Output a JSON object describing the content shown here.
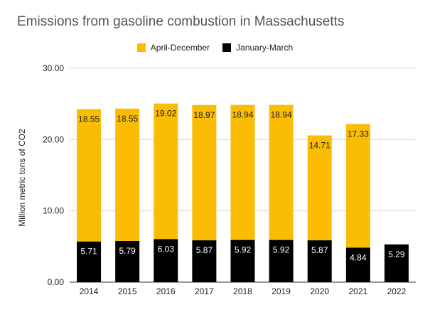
{
  "chart_data": {
    "type": "bar",
    "stacked": true,
    "title": "Emissions from gasoline combustion in Massachusetts",
    "xlabel": "",
    "ylabel": "Million metric tons of CO2",
    "ylim": [
      0,
      30
    ],
    "yticks": [
      "0.00",
      "10.00",
      "20.00",
      "30.00"
    ],
    "grid": true,
    "legend_position": "top",
    "categories": [
      "2014",
      "2015",
      "2016",
      "2017",
      "2018",
      "2019",
      "2020",
      "2021",
      "2022"
    ],
    "series": [
      {
        "name": "January-March",
        "color": "#000000",
        "label_color": "#ffffff",
        "values": [
          5.71,
          5.79,
          6.03,
          5.87,
          5.92,
          5.92,
          5.87,
          4.84,
          5.29
        ],
        "labels": [
          "5.71",
          "5.79",
          "6.03",
          "5.87",
          "5.92",
          "5.92",
          "5.87",
          "4.84",
          "5.29"
        ]
      },
      {
        "name": "April-December",
        "color": "#FBBC04",
        "label_color": "#222222",
        "values": [
          18.55,
          18.55,
          19.02,
          18.97,
          18.94,
          18.94,
          14.71,
          17.33,
          null
        ],
        "labels": [
          "18.55",
          "18.55",
          "19.02",
          "18.97",
          "18.94",
          "18.94",
          "14.71",
          "17.33",
          null
        ]
      }
    ]
  }
}
